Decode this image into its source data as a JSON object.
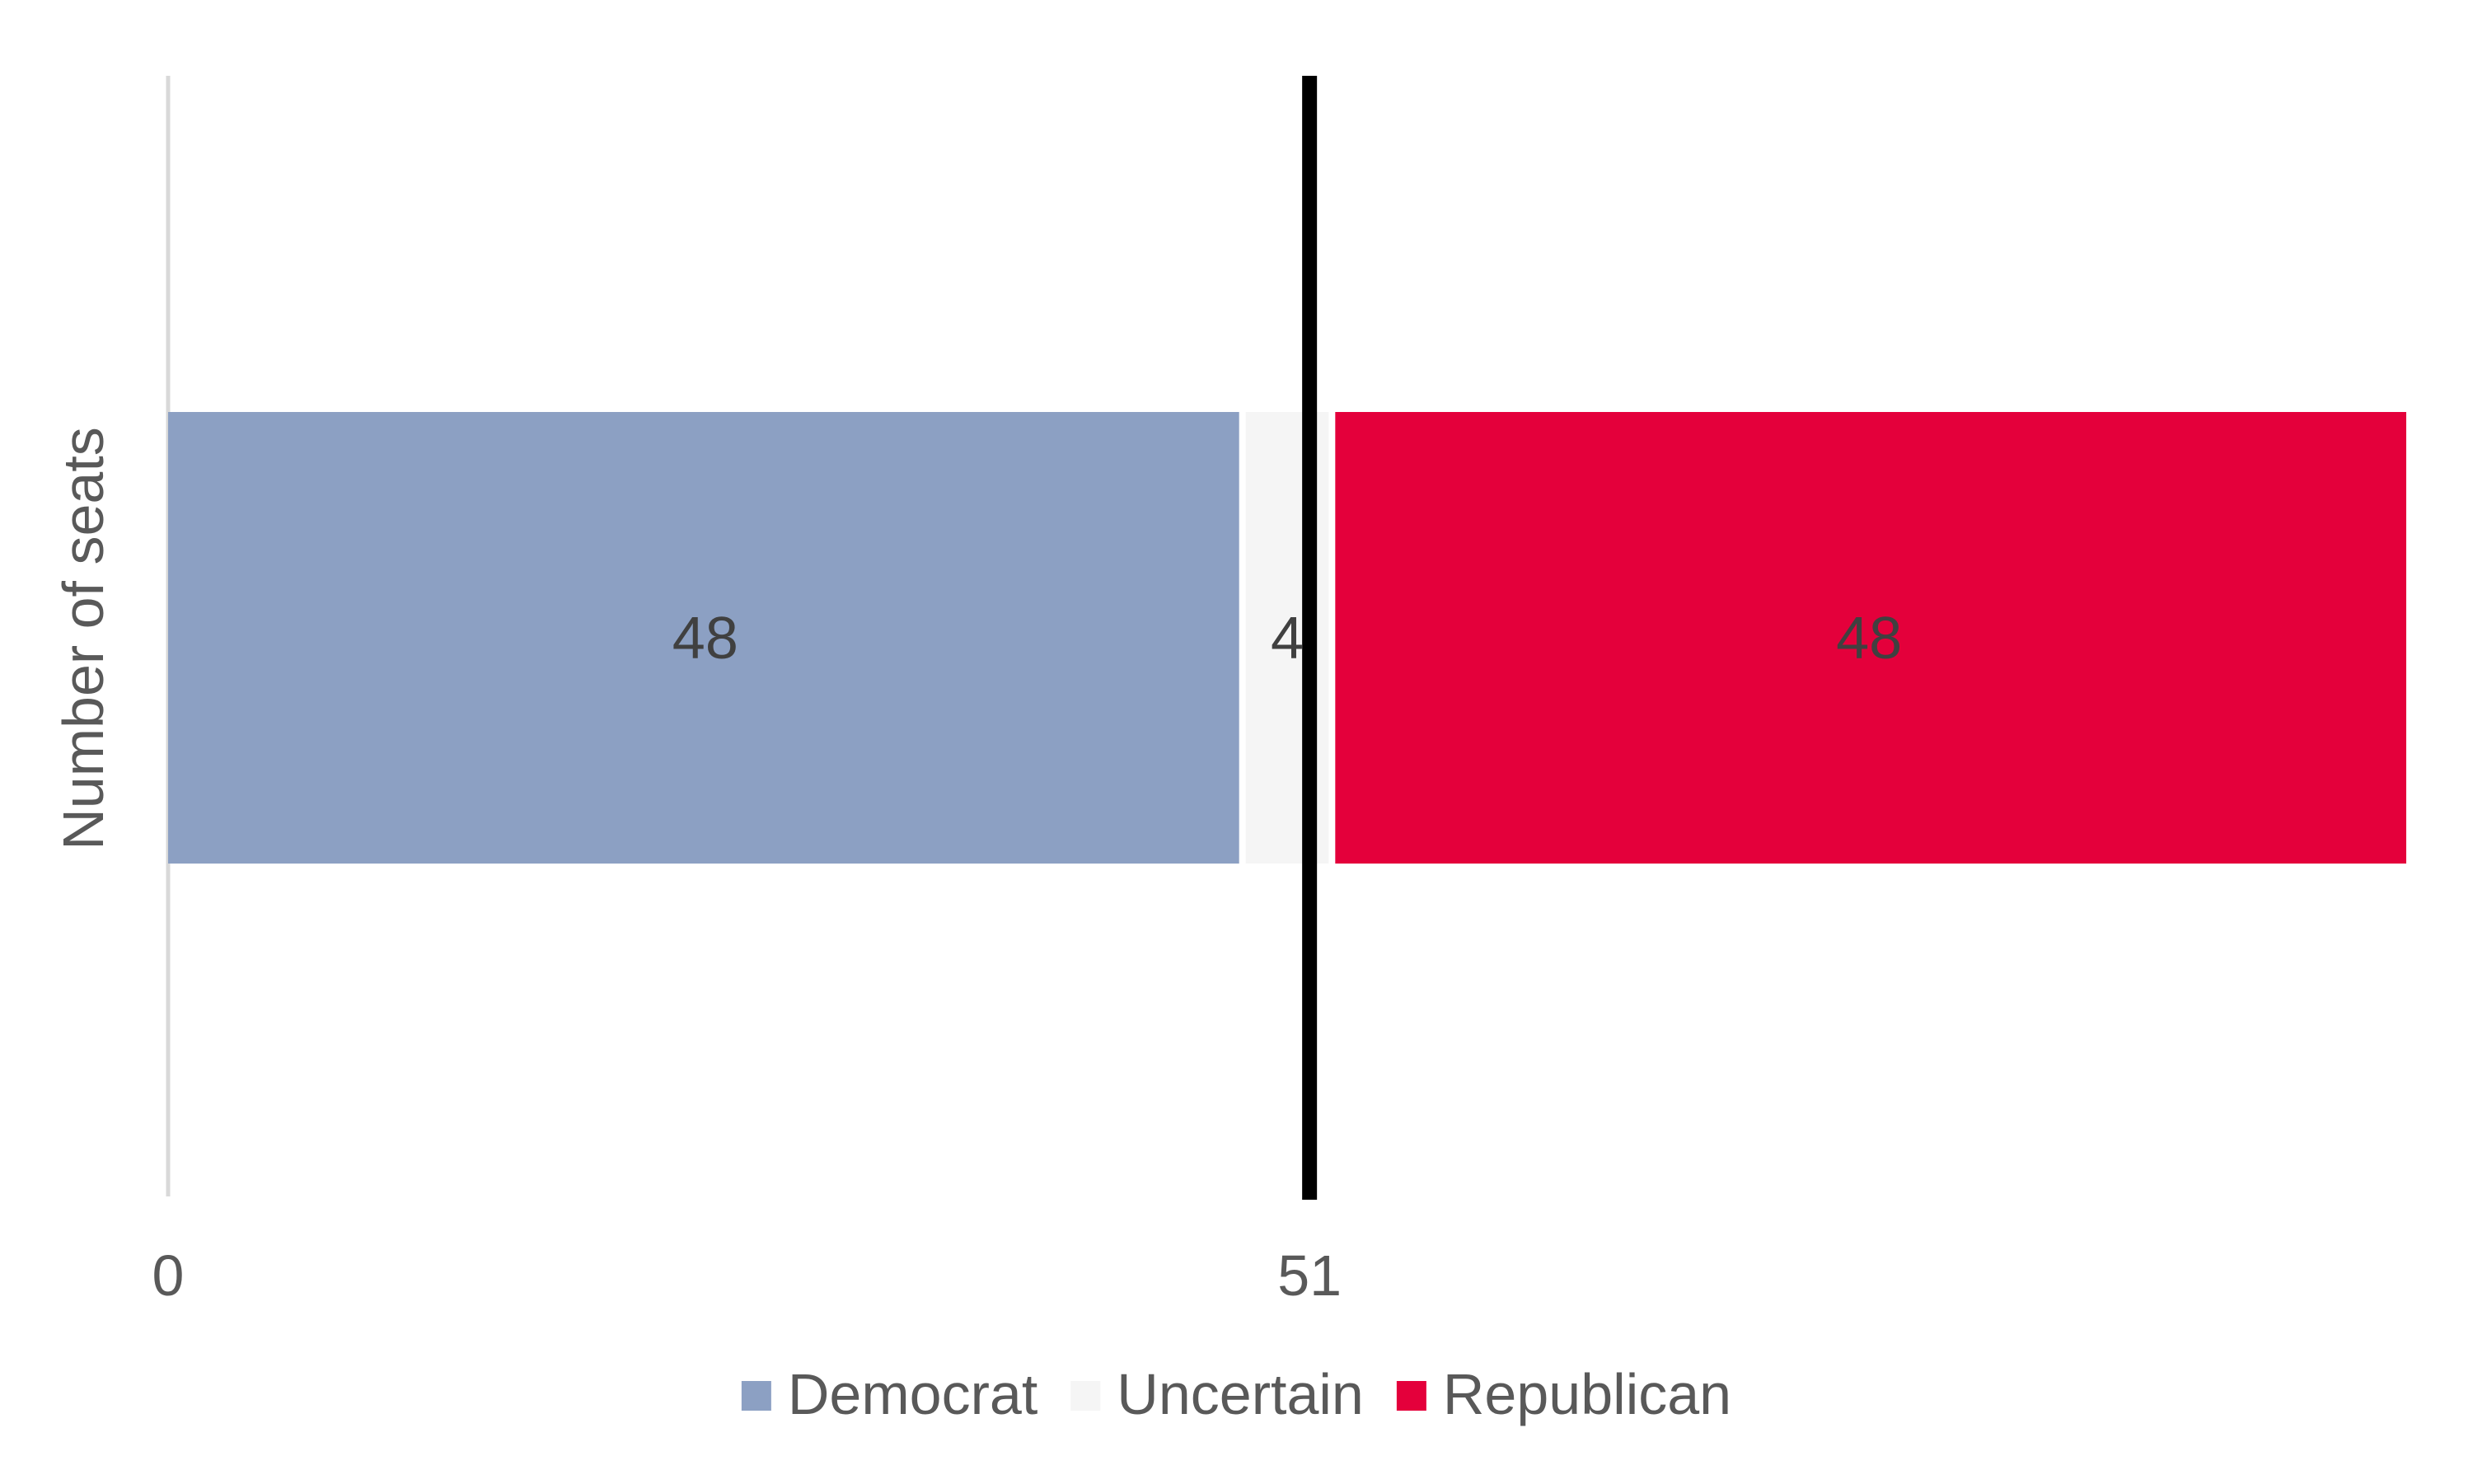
{
  "chart_data": {
    "type": "bar",
    "orientation": "horizontal",
    "stacked": true,
    "categories": [
      "Number of seats"
    ],
    "series": [
      {
        "name": "Democrat",
        "values": [
          48
        ],
        "color": "#8ca0c3"
      },
      {
        "name": "Uncertain",
        "values": [
          4
        ],
        "color": "#f5f5f5"
      },
      {
        "name": "Republican",
        "values": [
          48
        ],
        "color": "#e4003b"
      }
    ],
    "data_labels": [
      "48",
      "4",
      "48"
    ],
    "ylabel": "Number of seats",
    "xlim": [
      0,
      100
    ],
    "x_ticks": [
      0,
      51
    ],
    "x_tick_labels": [
      "0",
      "51"
    ],
    "reference_line": {
      "value": 51,
      "color": "#000000"
    },
    "grid": false,
    "legend_position": "bottom"
  }
}
